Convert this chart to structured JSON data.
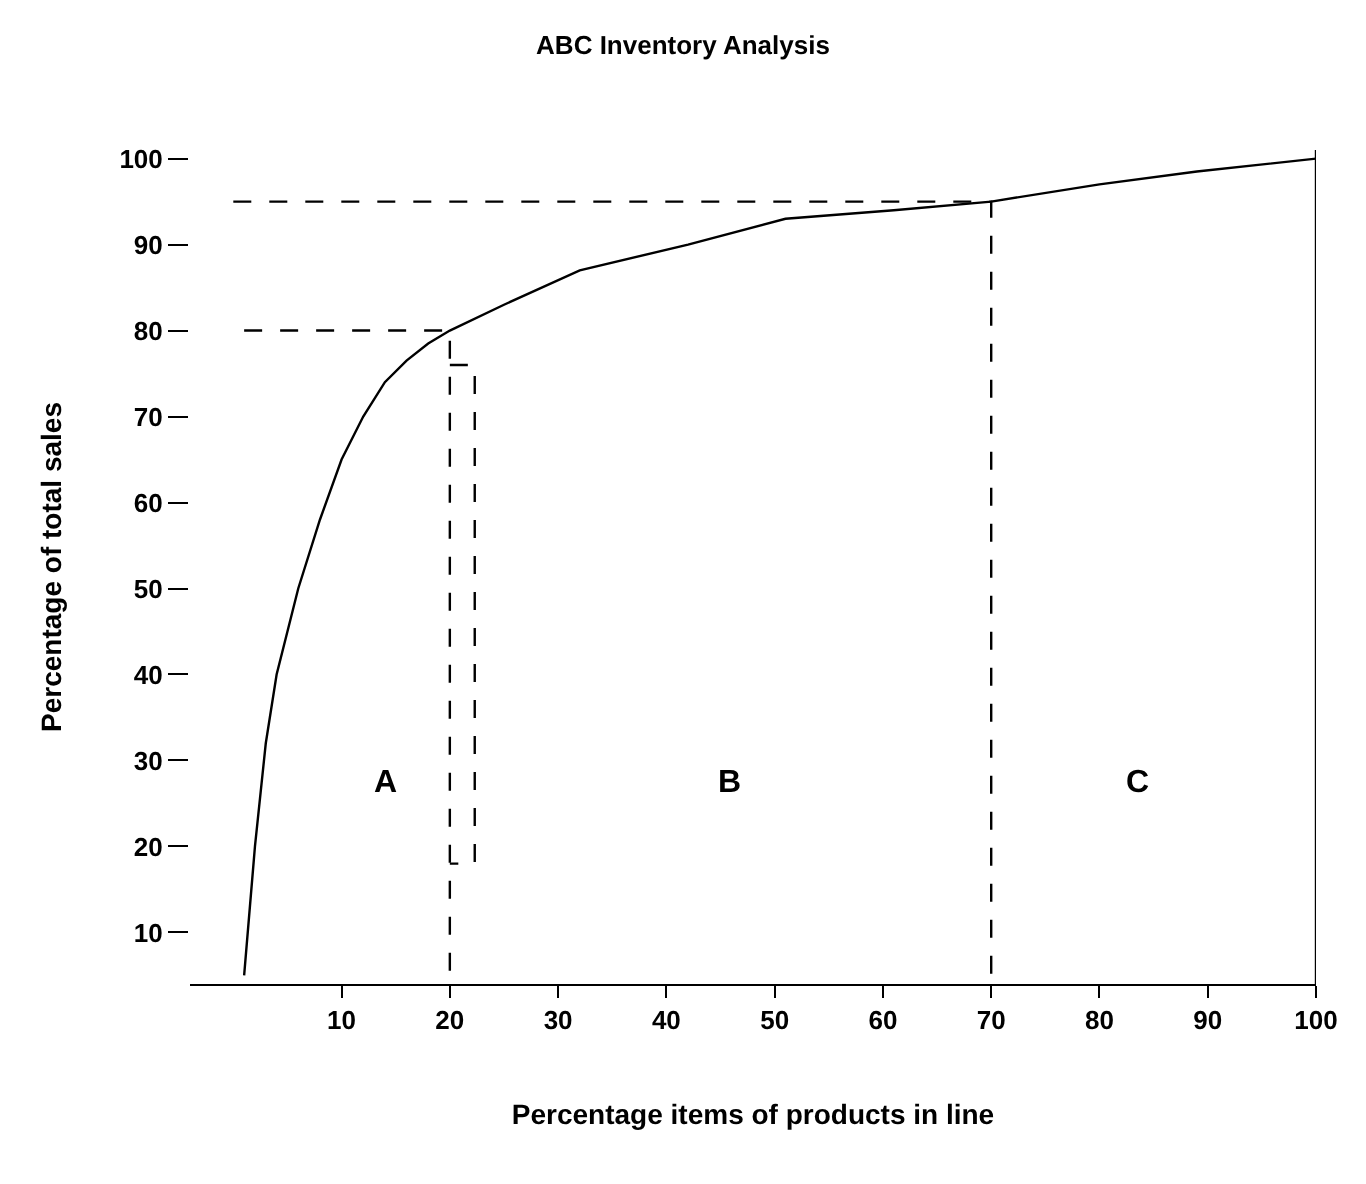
{
  "chart_data": {
    "type": "line",
    "title": "ABC Inventory Analysis",
    "xlabel": "Percentage items of products in line",
    "ylabel": "Percentage of total sales",
    "xlim": [
      -4,
      100
    ],
    "ylim": [
      4,
      101
    ],
    "xticks": [
      10,
      20,
      30,
      40,
      50,
      60,
      70,
      80,
      90,
      100
    ],
    "yticks": [
      10,
      20,
      30,
      40,
      50,
      60,
      70,
      80,
      90,
      100
    ],
    "grid": false,
    "legend": false,
    "series": [
      {
        "x": [
          1,
          2,
          3,
          4,
          6,
          8,
          10,
          12,
          14,
          16,
          18,
          20,
          25,
          32,
          42,
          51,
          61,
          70,
          80,
          89,
          100
        ],
        "values": [
          5,
          20,
          32,
          40,
          50,
          58,
          65,
          70,
          74,
          76.5,
          78.5,
          80,
          83,
          87,
          90,
          93,
          94,
          95,
          97,
          98.5,
          100
        ],
        "color": "#000000",
        "line_style": "solid"
      },
      {
        "x": [
          1,
          20,
          20
        ],
        "values": [
          80,
          80,
          4
        ],
        "color": "#000000",
        "line_style": "dashed"
      },
      {
        "x": [
          20,
          22.3,
          22.3,
          20
        ],
        "values": [
          76,
          76,
          18,
          18
        ],
        "color": "#000000",
        "line_style": "dashed"
      },
      {
        "x": [
          0,
          70,
          70
        ],
        "values": [
          95,
          95,
          4
        ],
        "color": "#000000",
        "line_style": "dashed"
      }
    ],
    "ref_lines": [
      {
        "axis": "x",
        "value": 100,
        "color": "#000000",
        "line_style": "solid"
      }
    ],
    "annotations": [
      "A",
      "B",
      "C"
    ]
  }
}
